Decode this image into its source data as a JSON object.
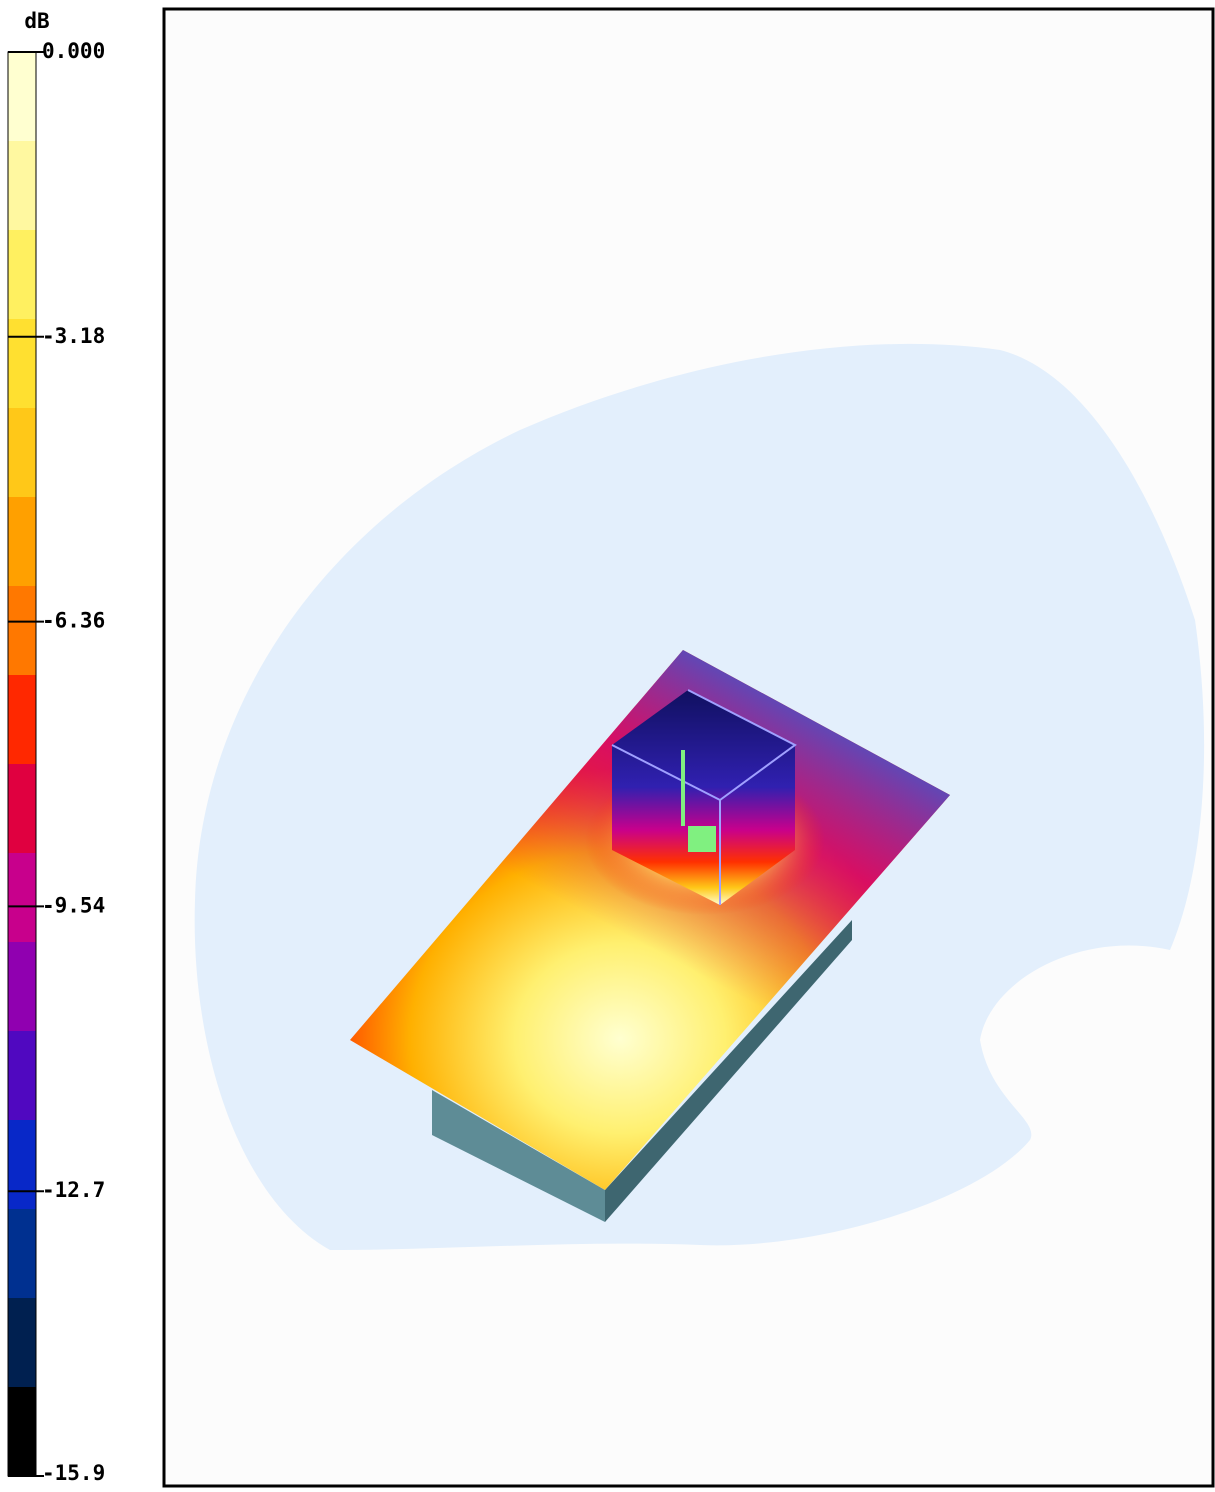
{
  "colorbar": {
    "unit": "dB",
    "labels": [
      "0.000",
      "-3.18",
      "-6.36",
      "-9.54",
      "-12.7",
      "-15.9"
    ],
    "colors": [
      "#ffffd0",
      "#fff8a0",
      "#fff060",
      "#ffe030",
      "#ffc818",
      "#ffa000",
      "#ff7800",
      "#ff2800",
      "#e00040",
      "#c8008c",
      "#9000b0",
      "#5008c0",
      "#0828c8",
      "#003090",
      "#002050",
      "#000000"
    ]
  }
}
